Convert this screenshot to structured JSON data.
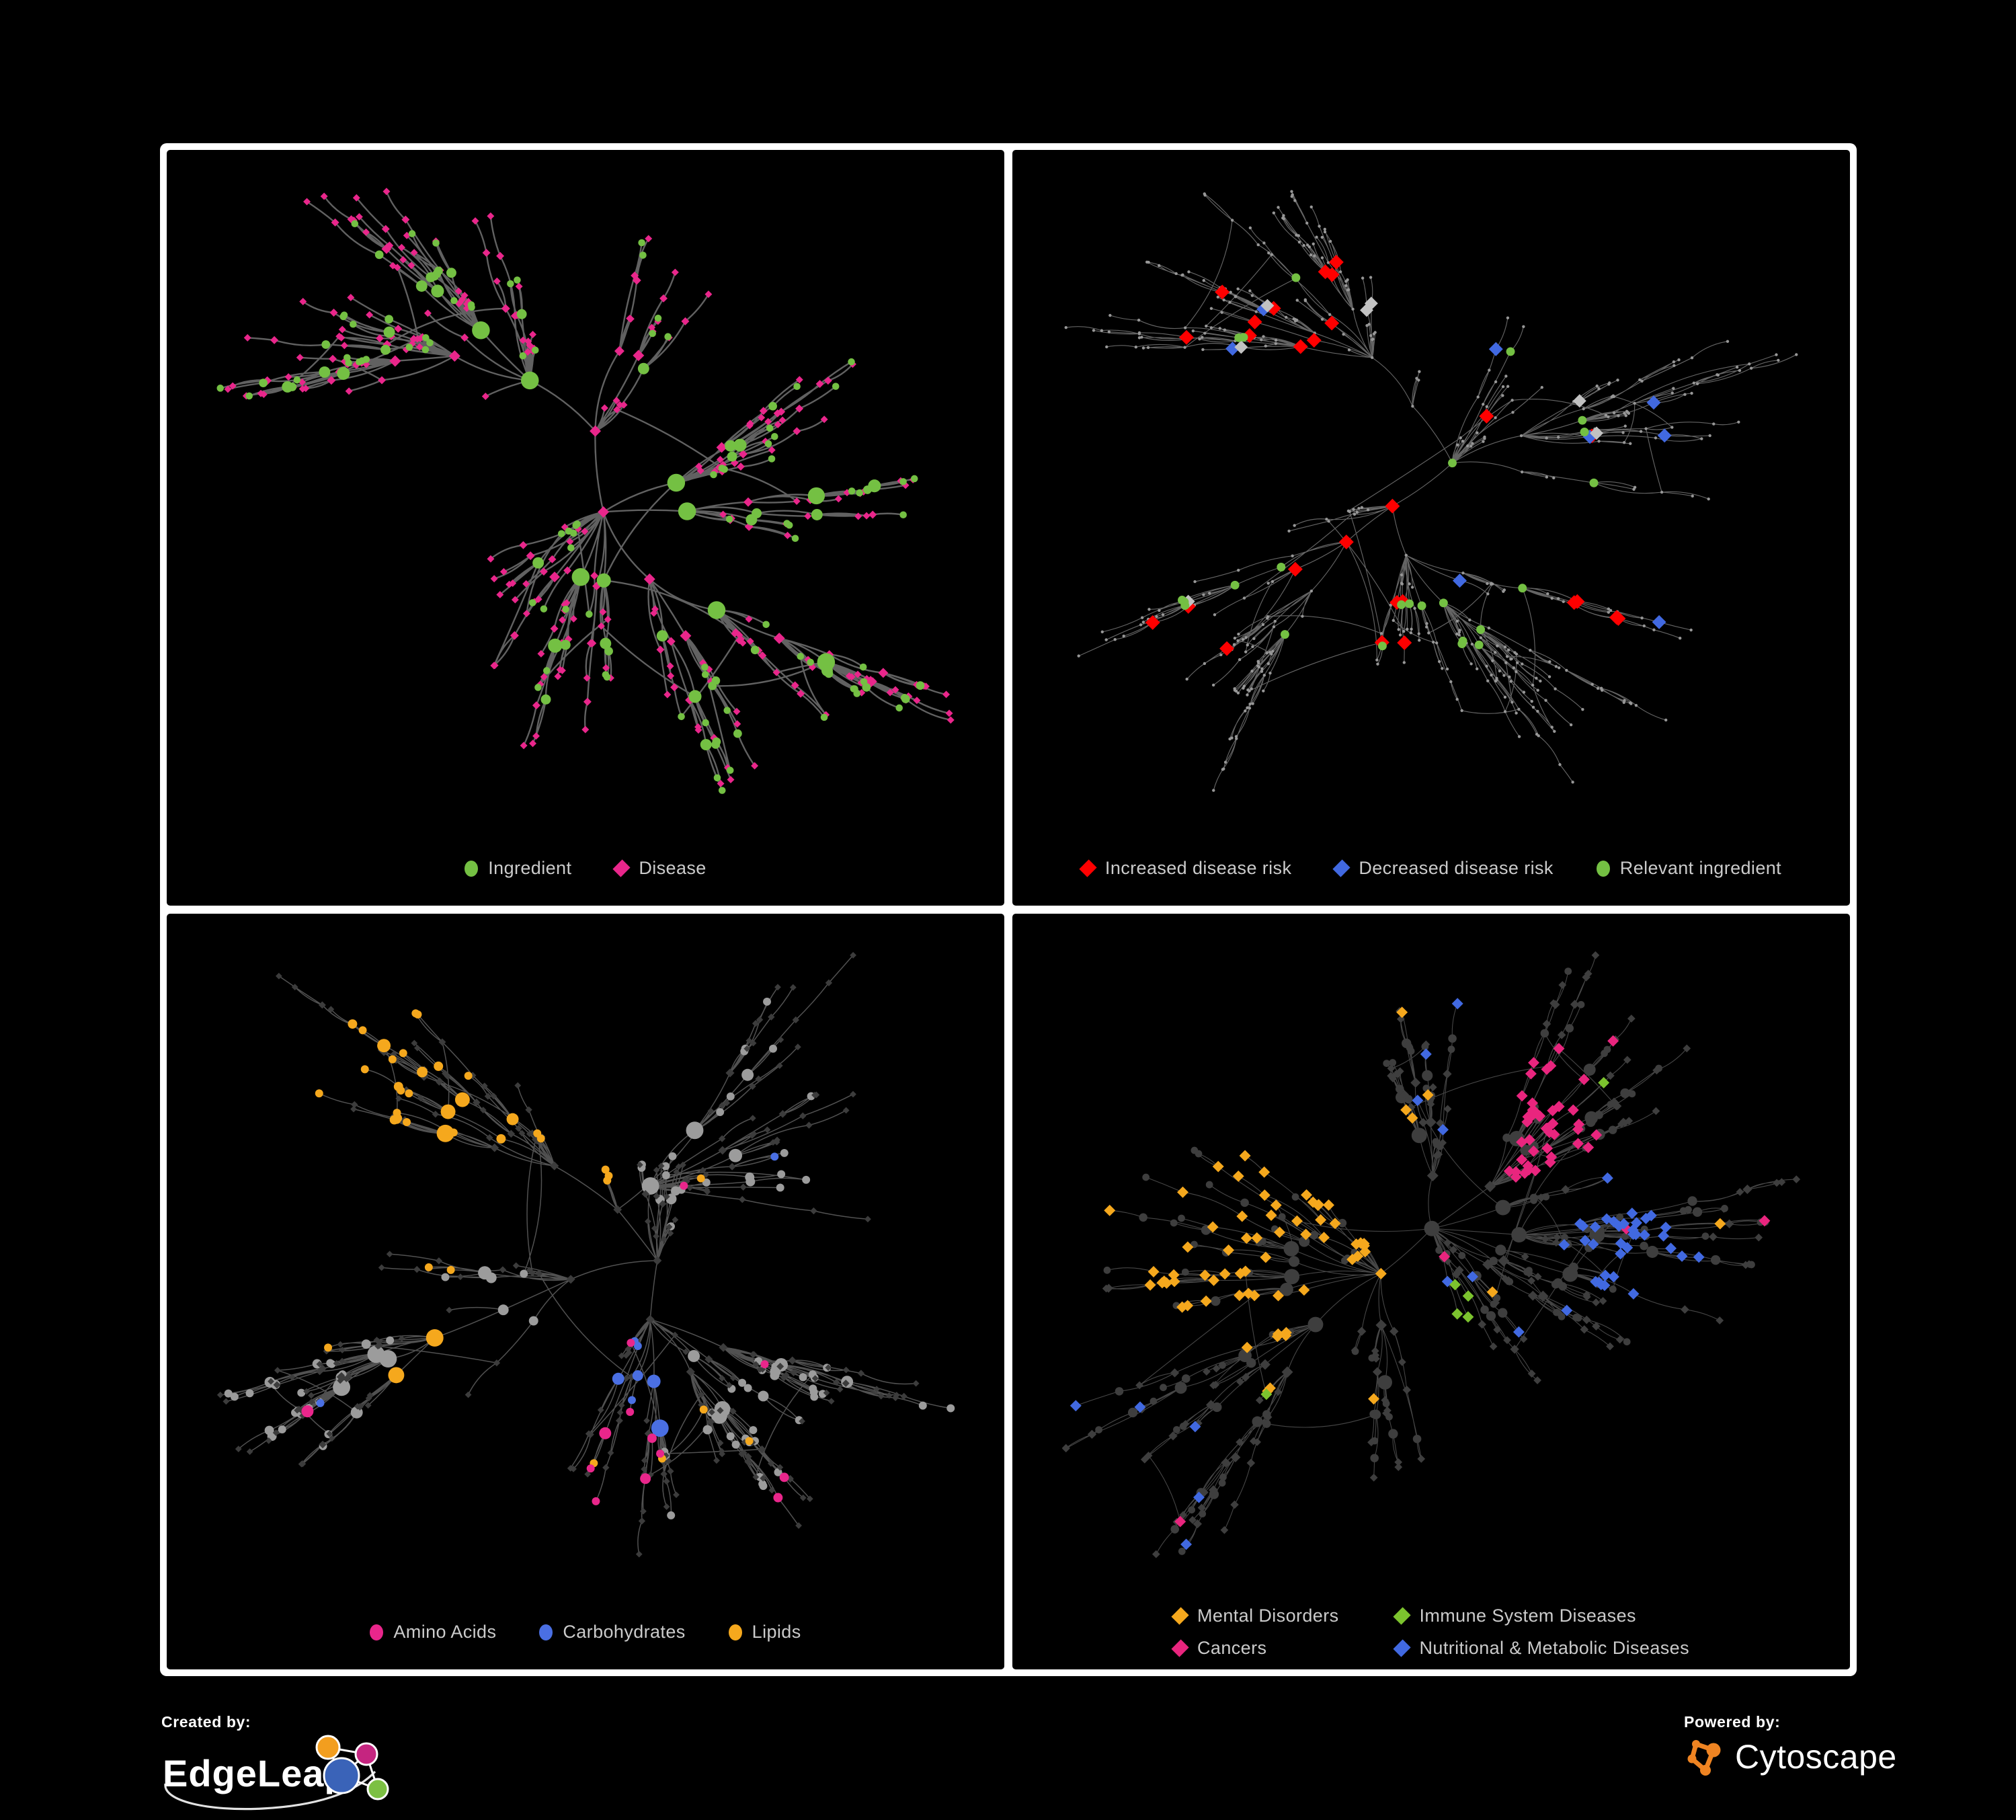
{
  "footer": {
    "created_by": "Created by:",
    "brand": "EdgeLeap",
    "powered_by": "Powered by:",
    "engine": "Cytoscape"
  },
  "colors": {
    "background": "#000000",
    "frame": "#ffffff",
    "legend_text": "#cbcbcb",
    "ingredient_green": "#74C043",
    "disease_pink": "#E9268B",
    "risk_red": "#FF0000",
    "risk_blue": "#4169E1",
    "neutral_silver": "#C2C2C2",
    "amino_pink": "#E9268B",
    "carb_blue": "#4A6FE3",
    "lipid_amber": "#F5A81D",
    "mental_amber": "#F5A81D",
    "immune_green": "#7CC32E",
    "cancer_pink": "#E9257E",
    "nutritional_blue": "#4169E1",
    "dim_gray_node": "#3D3D3D",
    "edgeleap_orange": "#F29E1F",
    "edgeleap_magenta": "#C52580",
    "edgeleap_blue": "#3A63B8",
    "edgeleap_green": "#7CC043",
    "cytoscape_orange": "#EF8422"
  },
  "panels": [
    {
      "key": "ingredient-disease",
      "legend": [
        {
          "label": "Ingredient",
          "shape": "circle",
          "color": "#74C043"
        },
        {
          "label": "Disease",
          "shape": "diamond",
          "color": "#E9268B"
        }
      ],
      "style": {
        "mode": "bipartite",
        "edgeColor": "#6C6C6C",
        "edgeWidth": 2.4,
        "edgeOpacity": 0.9,
        "ingredient": {
          "color": "#74C043"
        },
        "disease": {
          "color": "#E9268B"
        }
      },
      "gen": {
        "seed": 12,
        "nodeCount": 430,
        "uniformP": 0.42,
        "extraEdges": 0.05,
        "stepR": 130,
        "leafR": 52
      }
    },
    {
      "key": "disease-risk",
      "legend": [
        {
          "label": "Increased disease risk",
          "shape": "diamond",
          "color": "#FF0000"
        },
        {
          "label": "Decreased disease risk",
          "shape": "diamond",
          "color": "#4169E1"
        },
        {
          "label": "Relevant ingredient",
          "shape": "circle",
          "color": "#74C043"
        }
      ],
      "style": {
        "mode": "highlight",
        "edgeColor": "#767676",
        "edgeWidth": 1.15,
        "edgeOpacity": 0.85,
        "base": {
          "color": "#979797",
          "r": 2.2
        },
        "highlights": [
          {
            "color": "#FF0000",
            "shape": "diamond",
            "count": 27,
            "size": 11,
            "zone": "center"
          },
          {
            "color": "#4169E1",
            "shape": "diamond",
            "count": 5,
            "size": 10.5,
            "zone": "center"
          },
          {
            "color": "#4169E1",
            "shape": "diamond",
            "count": 3,
            "size": 10.5,
            "zone": "right"
          },
          {
            "color": "#C2C2C2",
            "shape": "diamond",
            "count": 7,
            "size": 10,
            "zone": "center"
          },
          {
            "color": "#74C043",
            "shape": "circle",
            "count": 24,
            "size": 6.5,
            "zone": "center"
          }
        ]
      },
      "gen": {
        "seed": 7,
        "nodeCount": 520,
        "uniformP": 0.5,
        "extraEdges": 0.06,
        "stepR": 120,
        "leafR": 46
      }
    },
    {
      "key": "ingredient-categories",
      "legend": [
        {
          "label": "Amino Acids",
          "shape": "circle",
          "color": "#E9268B"
        },
        {
          "label": "Carbohydrates",
          "shape": "circle",
          "color": "#4A6FE3"
        },
        {
          "label": "Lipids",
          "shape": "circle",
          "color": "#F5A81D"
        }
      ],
      "style": {
        "mode": "ingredient-cats",
        "edgeColor": "#5F5F5F",
        "edgeWidth": 1.5,
        "edgeOpacity": 0.85,
        "disease": {
          "color": "#3C3C3C"
        },
        "ingredient": {
          "color": "#9C9C9C"
        },
        "clusters": [
          {
            "color": "#F5A81D",
            "count": 34,
            "scatter": 10,
            "bias": "center"
          },
          {
            "color": "#E9268B",
            "count": 7,
            "scatter": 11,
            "bias": "any"
          },
          {
            "color": "#4A6FE3",
            "count": 7,
            "scatter": 5,
            "bias": "center"
          }
        ]
      },
      "gen": {
        "seed": 33,
        "nodeCount": 460,
        "uniformP": 0.45,
        "extraEdges": 0.05,
        "stepR": 126,
        "leafR": 50
      }
    },
    {
      "key": "disease-categories",
      "legend": [
        {
          "label": "Mental Disorders",
          "shape": "diamond",
          "color": "#F5A81D"
        },
        {
          "label": "Immune System Diseases",
          "shape": "diamond",
          "color": "#7CC32E"
        },
        {
          "label": "Cancers",
          "shape": "diamond",
          "color": "#E9257E"
        },
        {
          "label": "Nutritional & Metabolic Diseases",
          "shape": "diamond",
          "color": "#4169E1"
        }
      ],
      "style": {
        "mode": "disease-cats",
        "edgeColor": "#585858",
        "edgeWidth": 1.1,
        "edgeOpacity": 0.8,
        "disease": {
          "color": "#3E3E3E"
        },
        "ingredient": {
          "color": "#3E3E3E"
        },
        "clusters": [
          {
            "color": "#F5A81D",
            "count": 62,
            "scatter": 8,
            "bias": "left"
          },
          {
            "color": "#E9257E",
            "count": 42,
            "scatter": 10,
            "bias": "center"
          },
          {
            "color": "#4169E1",
            "count": 34,
            "scatter": 22,
            "bias": "right"
          },
          {
            "color": "#7CC32E",
            "count": 4,
            "scatter": 6,
            "bias": "any"
          }
        ]
      },
      "gen": {
        "seed": 51,
        "nodeCount": 520,
        "uniformP": 0.5,
        "extraEdges": 0.06,
        "stepR": 122,
        "leafR": 47
      }
    }
  ]
}
